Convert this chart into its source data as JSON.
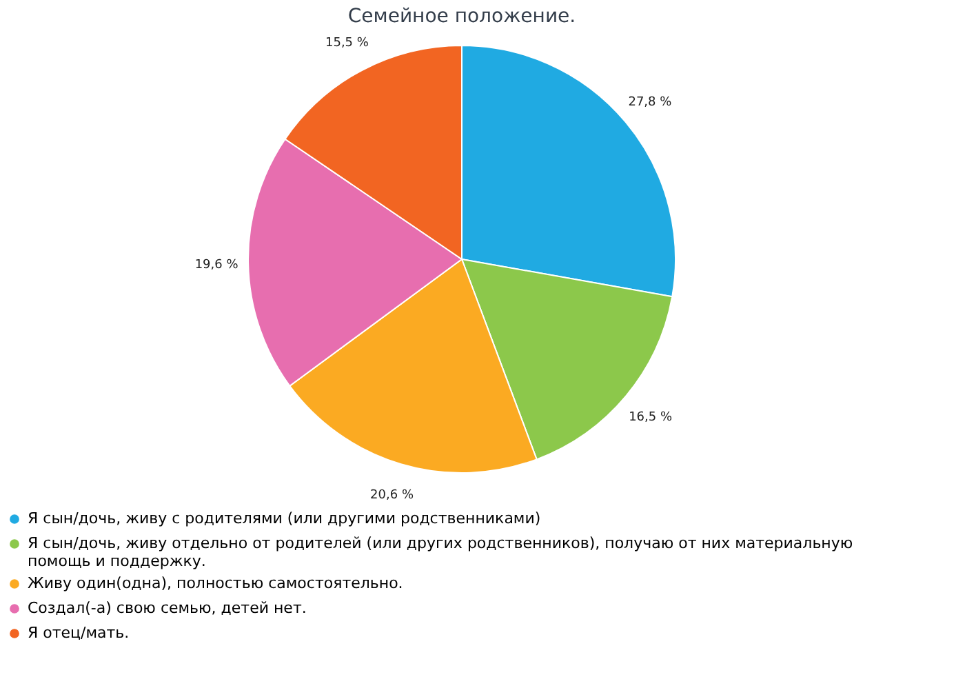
{
  "chart_data": {
    "type": "pie",
    "title": "Семейное положение.",
    "categories": [
      "Я сын/дочь, живу с родителями (или другими родственниками)",
      "Я сын/дочь, живу отдельно от родителей (или других родственников), получаю от них материальную помощь и поддержку.",
      "Живу один(одна), полностью самостоятельно.",
      "Создал(-а) свою семью, детей нет.",
      "Я отец/мать."
    ],
    "values": [
      27.8,
      16.5,
      20.6,
      19.6,
      15.5
    ],
    "value_labels": [
      "27,8 %",
      "16,5 %",
      "20,6 %",
      "19,6 %",
      "15,5 %"
    ],
    "colors": [
      "#20aae2",
      "#8cc84b",
      "#fbaa22",
      "#e76eaf",
      "#f26522"
    ],
    "legend": "bottom"
  }
}
